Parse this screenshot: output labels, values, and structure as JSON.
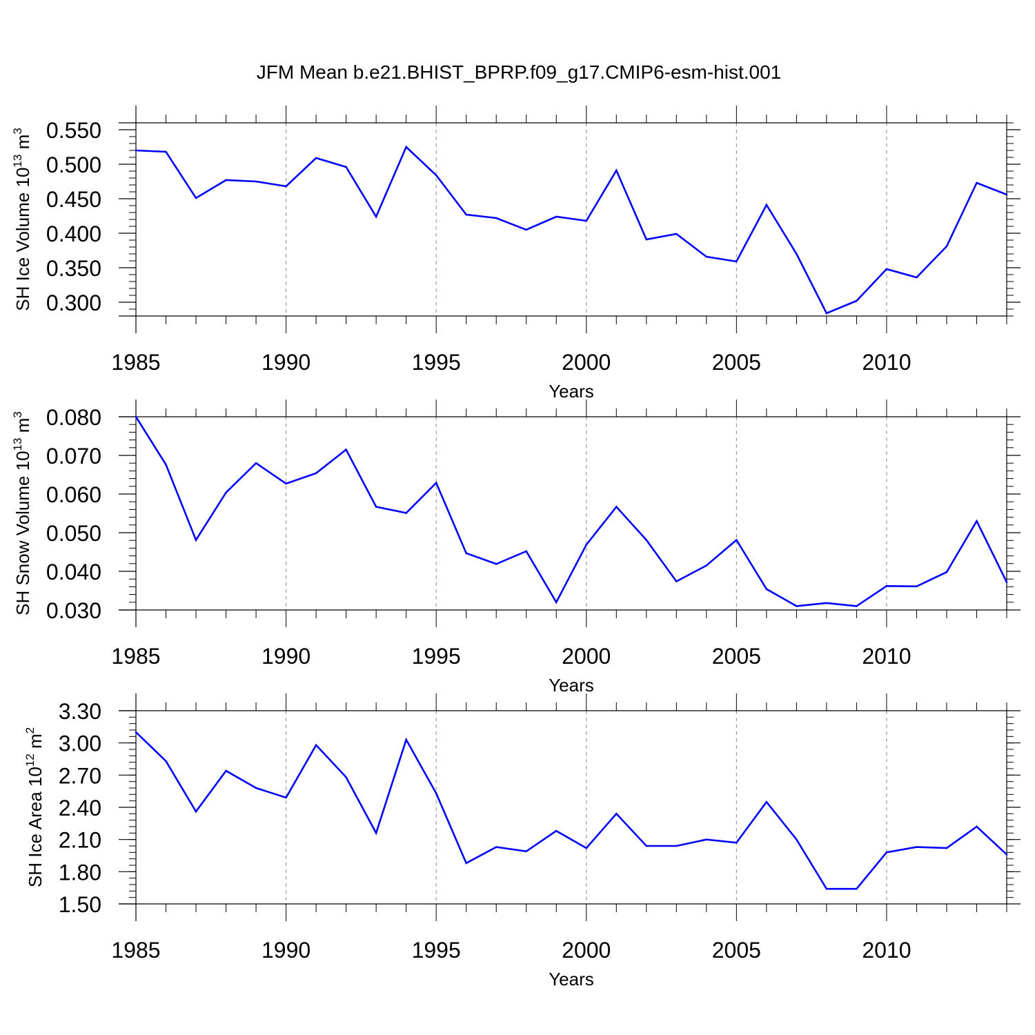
{
  "figure_title": "JFM Mean b.e21.BHIST_BPRP.f09_g17.CMIP6-esm-hist.001",
  "chart_data": [
    {
      "type": "line",
      "ylabel": {
        "text": "SH Ice Volume 10",
        "exp": "13",
        "unit": " m",
        "unit_exp": "3"
      },
      "xlabel": "Years",
      "xlim": [
        1985,
        2014
      ],
      "ylim": [
        0.28,
        0.56
      ],
      "yticks": [
        "0.300",
        "0.350",
        "0.400",
        "0.450",
        "0.500",
        "0.550"
      ],
      "xticks": [
        "1985",
        "1990",
        "1995",
        "2000",
        "2005",
        "2010"
      ],
      "grid_x": true,
      "color": "#0000ff",
      "x": [
        1985,
        1986,
        1987,
        1988,
        1989,
        1990,
        1991,
        1992,
        1993,
        1994,
        1995,
        1996,
        1997,
        1998,
        1999,
        2000,
        2001,
        2002,
        2003,
        2004,
        2005,
        2006,
        2007,
        2008,
        2009,
        2010,
        2011,
        2012,
        2013,
        2014
      ],
      "values": [
        0.52,
        0.518,
        0.451,
        0.477,
        0.475,
        0.468,
        0.509,
        0.496,
        0.424,
        0.525,
        0.484,
        0.427,
        0.422,
        0.405,
        0.424,
        0.418,
        0.491,
        0.391,
        0.399,
        0.366,
        0.359,
        0.441,
        0.37,
        0.284,
        0.302,
        0.348,
        0.336,
        0.381,
        0.473,
        0.456
      ]
    },
    {
      "type": "line",
      "ylabel": {
        "text": "SH Snow Volume 10",
        "exp": "13",
        "unit": " m",
        "unit_exp": "3"
      },
      "xlabel": "Years",
      "xlim": [
        1985,
        2014
      ],
      "ylim": [
        0.03,
        0.08
      ],
      "yticks": [
        "0.030",
        "0.040",
        "0.050",
        "0.060",
        "0.070",
        "0.080"
      ],
      "xticks": [
        "1985",
        "1990",
        "1995",
        "2000",
        "2005",
        "2010"
      ],
      "grid_x": true,
      "color": "#0000ff",
      "x": [
        1985,
        1986,
        1987,
        1988,
        1989,
        1990,
        1991,
        1992,
        1993,
        1994,
        1995,
        1996,
        1997,
        1998,
        1999,
        2000,
        2001,
        2002,
        2003,
        2004,
        2005,
        2006,
        2007,
        2008,
        2009,
        2010,
        2011,
        2012,
        2013,
        2014
      ],
      "values": [
        0.08,
        0.0676,
        0.0481,
        0.0604,
        0.068,
        0.0627,
        0.0654,
        0.0715,
        0.0567,
        0.0551,
        0.0629,
        0.0447,
        0.0419,
        0.0452,
        0.032,
        0.0469,
        0.0567,
        0.0481,
        0.0374,
        0.0415,
        0.0481,
        0.0354,
        0.031,
        0.0318,
        0.031,
        0.0362,
        0.0361,
        0.0398,
        0.053,
        0.0372
      ]
    },
    {
      "type": "line",
      "ylabel": {
        "text": "SH Ice Area 10",
        "exp": "12",
        "unit": " m",
        "unit_exp": "2"
      },
      "xlabel": "Years",
      "xlim": [
        1985,
        2014
      ],
      "ylim": [
        1.5,
        3.3
      ],
      "yticks": [
        "1.50",
        "1.80",
        "2.10",
        "2.40",
        "2.70",
        "3.00",
        "3.30"
      ],
      "xticks": [
        "1985",
        "1990",
        "1995",
        "2000",
        "2005",
        "2010"
      ],
      "grid_x": true,
      "color": "#0000ff",
      "x": [
        1985,
        1986,
        1987,
        1988,
        1989,
        1990,
        1991,
        1992,
        1993,
        1994,
        1995,
        1996,
        1997,
        1998,
        1999,
        2000,
        2001,
        2002,
        2003,
        2004,
        2005,
        2006,
        2007,
        2008,
        2009,
        2010,
        2011,
        2012,
        2013,
        2014
      ],
      "values": [
        3.1,
        2.83,
        2.36,
        2.74,
        2.58,
        2.49,
        2.98,
        2.68,
        2.16,
        3.03,
        2.53,
        1.88,
        2.03,
        1.99,
        2.18,
        2.02,
        2.34,
        2.04,
        2.04,
        2.1,
        2.07,
        2.45,
        2.1,
        1.64,
        1.64,
        1.98,
        2.03,
        2.02,
        2.22,
        1.96
      ]
    }
  ]
}
